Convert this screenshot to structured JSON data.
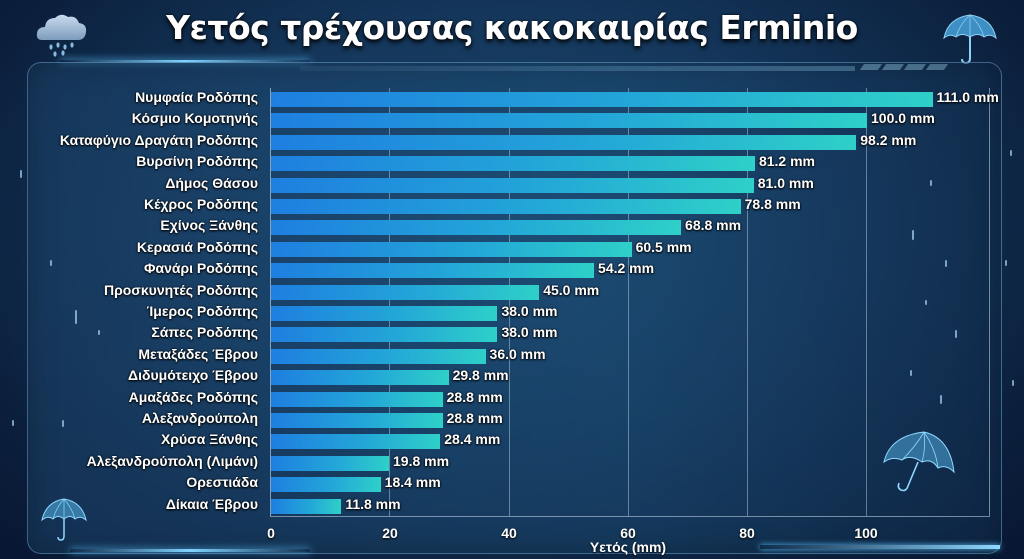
{
  "title": "Υετός τρέχουσας κακοκαιρίας Erminio",
  "icons": {
    "top_left": "rain-cloud-icon",
    "top_right": "umbrella-icon",
    "bottom_left": "umbrella-icon",
    "bottom_right": "umbrella-icon"
  },
  "colors": {
    "bar_start": "#1e7fe0",
    "bar_end": "#2ed0c8",
    "background": "#14365a",
    "text": "#ffffff"
  },
  "chart_data": {
    "type": "bar",
    "orientation": "horizontal",
    "title": "Υετός τρέχουσας κακοκαιρίας Erminio",
    "xlabel": "Υετός (mm)",
    "ylabel": "",
    "xlim": [
      0,
      120
    ],
    "xticks": [
      0,
      20,
      40,
      60,
      80,
      100
    ],
    "grid": true,
    "legend": null,
    "unit": "mm",
    "categories": [
      "Νυμφαία Ροδόπης",
      "Κόσμιο Κομοτηνής",
      "Καταφύγιο Δραγάτη Ροδόπης",
      "Βυρσίνη Ροδόπης",
      "Δήμος Θάσου",
      "Κέχρος Ροδόπης",
      "Εχίνος Ξάνθης",
      "Κερασιά Ροδόπης",
      "Φανάρι Ροδόπης",
      "Προσκυνητές Ροδόπης",
      "Ίμερος Ροδόπης",
      "Σάπες Ροδόπης",
      "Μεταξάδες Έβρου",
      "Διδυμότειχο Έβρου",
      "Αμαξάδες Ροδόπης",
      "Αλεξανδρούπολη",
      "Χρύσα Ξάνθης",
      "Αλεξανδρούπολη (Λιμάνι)",
      "Ορεστιάδα",
      "Δίκαια Έβρου"
    ],
    "values": [
      111.0,
      100.0,
      98.2,
      81.2,
      81.0,
      78.8,
      68.8,
      60.5,
      54.2,
      45.0,
      38.0,
      38.0,
      36.0,
      29.8,
      28.8,
      28.8,
      28.4,
      19.8,
      18.4,
      11.8
    ],
    "labels": [
      "111.0 mm",
      "100.0 mm",
      "98.2 mm",
      "81.2 mm",
      "81.0 mm",
      "78.8 mm",
      "68.8 mm",
      "60.5 mm",
      "54.2 mm",
      "45.0 mm",
      "38.0 mm",
      "38.0 mm",
      "36.0 mm",
      "29.8 mm",
      "28.8 mm",
      "28.8 mm",
      "28.4 mm",
      "19.8 mm",
      "18.4 mm",
      "11.8 mm"
    ]
  },
  "axis": {
    "ticks": [
      "0",
      "20",
      "40",
      "60",
      "80",
      "100"
    ],
    "xlabel": "Υετός (mm)"
  }
}
